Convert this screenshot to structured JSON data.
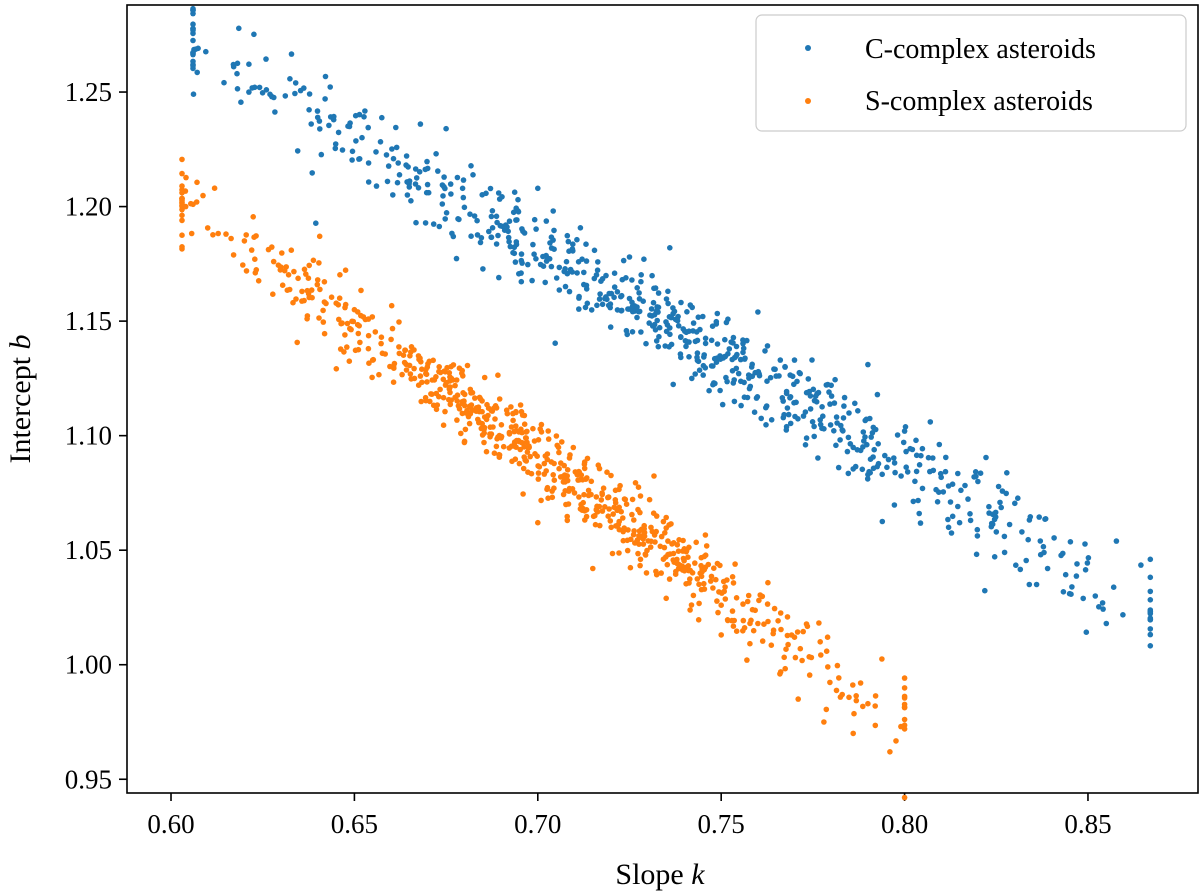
{
  "chart_data": {
    "type": "scatter",
    "title": "",
    "xlabel": "Slope",
    "xlabel_var": "k",
    "ylabel": "Intercept",
    "ylabel_var": "b",
    "xlim": [
      0.588,
      0.88
    ],
    "ylim": [
      0.944,
      1.288
    ],
    "xticks": [
      0.6,
      0.65,
      0.7,
      0.75,
      0.8,
      0.85
    ],
    "xtick_labels": [
      "0.60",
      "0.65",
      "0.70",
      "0.75",
      "0.80",
      "0.85"
    ],
    "yticks": [
      0.95,
      1.0,
      1.05,
      1.1,
      1.15,
      1.2,
      1.25
    ],
    "ytick_labels": [
      "0.95",
      "1.00",
      "1.05",
      "1.10",
      "1.15",
      "1.20",
      "1.25"
    ],
    "grid": false,
    "legend": "top-right",
    "series": [
      {
        "name": "C-complex asteroids",
        "color": "#1f77b4",
        "model": {
          "slope_line": [
            [
              0.606,
              1.272
            ],
            [
              0.867,
              1.022
            ]
          ],
          "spread_y": 0.011,
          "count": 720,
          "seed": 12345
        },
        "points": [
          [
            0.606,
            1.277
          ],
          [
            0.617,
            1.262
          ],
          [
            0.618,
            1.258
          ],
          [
            0.626,
            1.251
          ],
          [
            0.627,
            1.249
          ],
          [
            0.634,
            1.254
          ],
          [
            0.642,
            1.247
          ],
          [
            0.668,
            1.236
          ],
          [
            0.675,
            1.234
          ],
          [
            0.7,
            1.208
          ],
          [
            0.713,
            1.156
          ],
          [
            0.725,
            1.178
          ],
          [
            0.736,
            1.182
          ],
          [
            0.745,
            1.152
          ],
          [
            0.76,
            1.154
          ],
          [
            0.77,
            1.133
          ],
          [
            0.78,
            1.122
          ],
          [
            0.79,
            1.131
          ],
          [
            0.8,
            1.102
          ],
          [
            0.807,
            1.106
          ],
          [
            0.812,
            1.078
          ],
          [
            0.82,
            1.08
          ],
          [
            0.823,
            1.069
          ],
          [
            0.832,
            1.058
          ],
          [
            0.837,
            1.054
          ],
          [
            0.838,
            1.049
          ],
          [
            0.839,
            1.042
          ],
          [
            0.845,
            1.031
          ],
          [
            0.847,
            1.044
          ],
          [
            0.852,
            1.03
          ],
          [
            0.854,
            1.027
          ],
          [
            0.855,
            1.018
          ],
          [
            0.867,
            1.023
          ],
          [
            0.834,
            1.035
          ],
          [
            0.836,
            1.035
          ],
          [
            0.815,
            1.062
          ],
          [
            0.818,
            1.063
          ],
          [
            0.825,
            1.058
          ],
          [
            0.812,
            1.06
          ],
          [
            0.804,
            1.066
          ],
          [
            0.79,
            1.083
          ],
          [
            0.773,
            1.096
          ],
          [
            0.765,
            1.126
          ],
          [
            0.749,
            1.14
          ],
          [
            0.742,
            1.125
          ]
        ]
      },
      {
        "name": "S-complex asteroids",
        "color": "#ff7f0e",
        "model": {
          "slope_line": [
            [
              0.603,
              1.203
            ],
            [
              0.8,
              0.975
            ]
          ],
          "spread_y": 0.009,
          "count": 720,
          "seed": 67890
        },
        "points": [
          [
            0.603,
            1.206
          ],
          [
            0.604,
            1.2
          ],
          [
            0.606,
            1.201
          ],
          [
            0.607,
            1.202
          ],
          [
            0.615,
            1.188
          ],
          [
            0.62,
            1.185
          ],
          [
            0.622,
            1.181
          ],
          [
            0.628,
            1.176
          ],
          [
            0.631,
            1.172
          ],
          [
            0.64,
            1.168
          ],
          [
            0.646,
            1.16
          ],
          [
            0.65,
            1.155
          ],
          [
            0.655,
            1.133
          ],
          [
            0.66,
            1.142
          ],
          [
            0.668,
            1.126
          ],
          [
            0.673,
            1.117
          ],
          [
            0.679,
            1.101
          ],
          [
            0.68,
            1.097
          ],
          [
            0.688,
            1.112
          ],
          [
            0.69,
            1.099
          ],
          [
            0.71,
            1.075
          ],
          [
            0.72,
            1.06
          ],
          [
            0.728,
            1.046
          ],
          [
            0.74,
            1.041
          ],
          [
            0.75,
            1.026
          ],
          [
            0.76,
            1.018
          ],
          [
            0.77,
            1.012
          ],
          [
            0.777,
            1.01
          ],
          [
            0.779,
            1.012
          ],
          [
            0.788,
            0.992
          ],
          [
            0.79,
            0.983
          ],
          [
            0.792,
            0.982
          ],
          [
            0.796,
            0.962
          ],
          [
            0.799,
            0.973
          ],
          [
            0.8,
            0.972
          ],
          [
            0.786,
            0.97
          ],
          [
            0.783,
            0.987
          ],
          [
            0.778,
            0.975
          ],
          [
            0.771,
            0.985
          ],
          [
            0.766,
            0.996
          ],
          [
            0.757,
            1.002
          ],
          [
            0.75,
            1.013
          ],
          [
            0.735,
            1.029
          ],
          [
            0.715,
            1.042
          ],
          [
            0.7,
            1.062
          ]
        ]
      }
    ]
  }
}
